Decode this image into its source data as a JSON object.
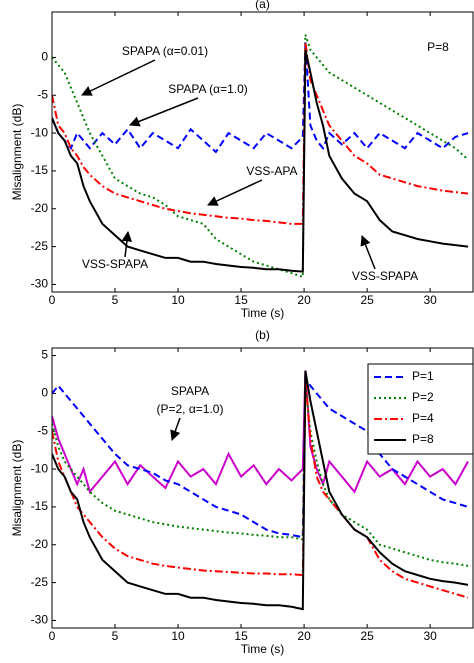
{
  "chart_data": [
    {
      "type": "line",
      "title": "(a)",
      "ylabel": "Misalignment (dB)",
      "xlabel": "Time (s)",
      "xlim": [
        0,
        33.4
      ],
      "ylim": [
        -31,
        6
      ],
      "xticks": [
        0,
        5,
        10,
        15,
        20,
        25,
        30
      ],
      "yticks": [
        -30,
        -25,
        -20,
        -15,
        -10,
        -5,
        0
      ],
      "annotations": [
        "SPAPA (α=0.01)",
        "SPAPA (α=1.0)",
        "VSS-APA",
        "VSS-SPAPA",
        "VSS-SPAPA",
        "P=8"
      ],
      "x": [
        0,
        0.5,
        1,
        1.5,
        2,
        2.5,
        3,
        4,
        5,
        6,
        7,
        8,
        9,
        10,
        11,
        12,
        13,
        14,
        15,
        16,
        17,
        18,
        19,
        19.9,
        20.1,
        20.5,
        21,
        21.5,
        22,
        23,
        24,
        25,
        26,
        27,
        28,
        29,
        30,
        31,
        32,
        33
      ],
      "series": [
        {
          "color": "#0000ff",
          "dash": "dashed",
          "values": [
            -8,
            -10,
            -11,
            -12,
            -10,
            -11,
            -12,
            -10,
            -11.5,
            -9.5,
            -12,
            -10,
            -11,
            -12,
            -9.5,
            -11,
            -12.5,
            -10,
            -11,
            -12,
            -10,
            -11,
            -12,
            -10.5,
            2,
            -9,
            -11,
            -12,
            -10,
            -11.5,
            -10,
            -12,
            -10,
            -11,
            -12,
            -10,
            -11,
            -12,
            -10.5,
            -10
          ]
        },
        {
          "color": "#008000",
          "dash": "dotted",
          "values": [
            0,
            -1,
            -2,
            -4,
            -6,
            -8,
            -10,
            -13,
            -16,
            -17,
            -18,
            -18.5,
            -19.5,
            -21,
            -21.5,
            -22,
            -24,
            -25,
            -26,
            -27,
            -27.5,
            -28,
            -28.5,
            -29,
            3,
            1,
            0,
            -1,
            -2,
            -3,
            -4,
            -5,
            -6,
            -7,
            -8,
            -9,
            -10,
            -11,
            -12,
            -13.5
          ]
        },
        {
          "color": "#ff0000",
          "dash": "dashdot",
          "values": [
            -5,
            -9,
            -10,
            -12,
            -13,
            -14.5,
            -15.5,
            -17,
            -18,
            -18.5,
            -19,
            -19.5,
            -20,
            -20.3,
            -20.6,
            -20.8,
            -21,
            -21.2,
            -21.3,
            -21.5,
            -21.6,
            -21.8,
            -22,
            -22,
            2,
            -3,
            -5,
            -7,
            -9,
            -11,
            -13,
            -14,
            -15.5,
            -16,
            -16.5,
            -17,
            -17.3,
            -17.6,
            -17.8,
            -18
          ]
        },
        {
          "color": "#000000",
          "dash": "solid",
          "values": [
            -8,
            -10,
            -11,
            -13,
            -14,
            -17,
            -19,
            -22,
            -23.5,
            -25,
            -25.5,
            -26,
            -26.5,
            -26.5,
            -27,
            -27,
            -27.3,
            -27.5,
            -27.7,
            -27.8,
            -28,
            -28,
            -28.2,
            -28.3,
            1,
            -2,
            -6,
            -9,
            -13,
            -16,
            -18,
            -19,
            -21.5,
            -23,
            -23.5,
            -24,
            -24.3,
            -24.6,
            -24.8,
            -25
          ]
        }
      ]
    },
    {
      "type": "line",
      "title": "(b)",
      "ylabel": "Misalignment (dB)",
      "xlabel": "Time (s)",
      "xlim": [
        0,
        33.4
      ],
      "ylim": [
        -31,
        6
      ],
      "xticks": [
        0,
        5,
        10,
        15,
        20,
        25,
        30
      ],
      "yticks": [
        -30,
        -25,
        -20,
        -15,
        -10,
        -5,
        0,
        5
      ],
      "annotations": [
        "SPAPA",
        "(P=2, α=1.0)"
      ],
      "x": [
        0,
        0.5,
        1,
        1.5,
        2,
        2.5,
        3,
        4,
        5,
        6,
        7,
        8,
        9,
        10,
        11,
        12,
        13,
        14,
        15,
        16,
        17,
        18,
        19,
        19.9,
        20.1,
        20.5,
        21,
        21.5,
        22,
        23,
        24,
        25,
        26,
        27,
        28,
        29,
        30,
        31,
        32,
        33
      ],
      "series": [
        {
          "color": "#cc00cc",
          "dash": "solid",
          "values": [
            -3,
            -6,
            -8,
            -10,
            -12,
            -10,
            -13,
            -11,
            -9,
            -12,
            -9.5,
            -11,
            -12.5,
            -9,
            -11,
            -10,
            -12,
            -8,
            -11,
            -9.5,
            -12,
            -10,
            -11.5,
            -10,
            3,
            -7,
            -10,
            -12,
            -9,
            -11,
            -13,
            -9,
            -11,
            -10,
            -12,
            -9,
            -11,
            -10,
            -12,
            -9
          ]
        },
        {
          "name": "P=1",
          "color": "#0000ff",
          "dash": "dashed",
          "values": [
            0,
            1,
            0,
            -1,
            -2,
            -3,
            -4,
            -6,
            -8,
            -9.5,
            -10,
            -10.5,
            -11.5,
            -12,
            -13,
            -14,
            -15,
            -15.5,
            -16,
            -17,
            -18,
            -18.5,
            -18.7,
            -19,
            2,
            1,
            0,
            -1,
            -2,
            -3,
            -4,
            -5,
            -8,
            -10,
            -11,
            -12,
            -13,
            -14,
            -14.5,
            -15
          ]
        },
        {
          "name": "P=2",
          "color": "#008000",
          "dash": "dotted",
          "values": [
            -4,
            -7,
            -9,
            -10,
            -11,
            -12,
            -13,
            -14.5,
            -15.5,
            -16,
            -16.5,
            -17,
            -17.3,
            -17.6,
            -17.8,
            -18,
            -18.2,
            -18.4,
            -18.5,
            -18.7,
            -18.8,
            -19,
            -19,
            -19.3,
            1,
            -5,
            -9,
            -12,
            -14,
            -16,
            -17,
            -18,
            -20,
            -20.5,
            -21,
            -21.5,
            -22,
            -22.3,
            -22.5,
            -22.8
          ]
        },
        {
          "name": "P=4",
          "color": "#ff0000",
          "dash": "dashdot",
          "values": [
            -5,
            -9,
            -11,
            -13,
            -15,
            -16,
            -17,
            -19,
            -20.5,
            -21.5,
            -22,
            -22.5,
            -22.8,
            -23,
            -23.2,
            -23.4,
            -23.5,
            -23.6,
            -23.7,
            -23.8,
            -23.8,
            -23.9,
            -23.9,
            -24,
            2,
            -6,
            -11,
            -13,
            -14,
            -16,
            -18,
            -19,
            -22,
            -23.5,
            -24.5,
            -25,
            -25.5,
            -26,
            -26.5,
            -27
          ]
        },
        {
          "name": "P=8",
          "color": "#000000",
          "dash": "solid",
          "values": [
            -8,
            -10,
            -11,
            -13,
            -14,
            -17,
            -19,
            -22,
            -23.5,
            -25,
            -25.5,
            -26,
            -26.5,
            -26.5,
            -27,
            -27,
            -27.3,
            -27.5,
            -27.7,
            -27.8,
            -28,
            -28,
            -28.2,
            -28.5,
            3,
            -1,
            -5,
            -9,
            -13,
            -16,
            -18,
            -19,
            -21,
            -22.5,
            -23.5,
            -24,
            -24.5,
            -24.8,
            -25,
            -25.3
          ]
        }
      ]
    }
  ]
}
